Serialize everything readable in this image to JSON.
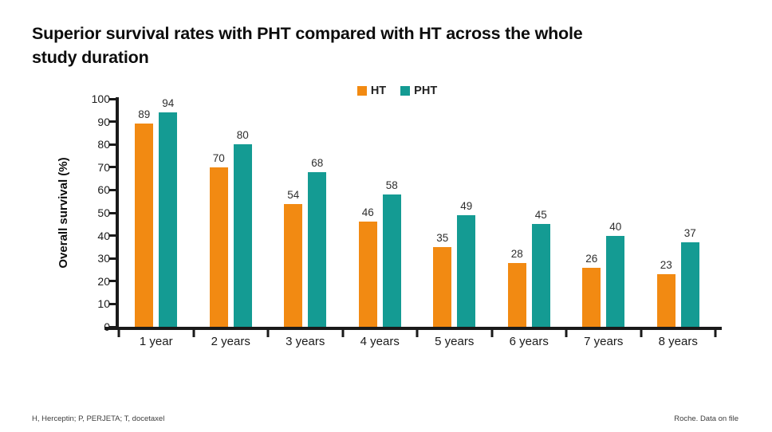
{
  "title": "Superior survival rates with PHT compared with HT across the whole study duration",
  "colors": {
    "ht_orange": "#F28A12",
    "pht_teal": "#149B93",
    "axis": "#1a1a1a"
  },
  "legend": [
    {
      "label": "HT",
      "color": "#F28A12"
    },
    {
      "label": "PHT",
      "color": "#149B93"
    }
  ],
  "chart_data": {
    "type": "bar",
    "categories": [
      "1 year",
      "2 years",
      "3 years",
      "4 years",
      "5 years",
      "6 years",
      "7 years",
      "8 years"
    ],
    "series": [
      {
        "name": "HT",
        "color": "#F28A12",
        "values": [
          89,
          70,
          54,
          46,
          35,
          28,
          26,
          23
        ]
      },
      {
        "name": "PHT",
        "color": "#149B93",
        "values": [
          94,
          80,
          68,
          58,
          49,
          45,
          40,
          37
        ]
      }
    ],
    "title": "Superior survival rates with PHT compared with HT across the whole study duration",
    "xlabel": "",
    "ylabel": "Overall survival (%)",
    "ylim": [
      0,
      100
    ],
    "ytick_step": 10,
    "grid": false,
    "legend_position": "top-center",
    "bar_value_labels": true
  },
  "footer": {
    "left": "H, Herceptin; P, PERJETA; T, docetaxel",
    "right": "Roche. Data on file"
  }
}
